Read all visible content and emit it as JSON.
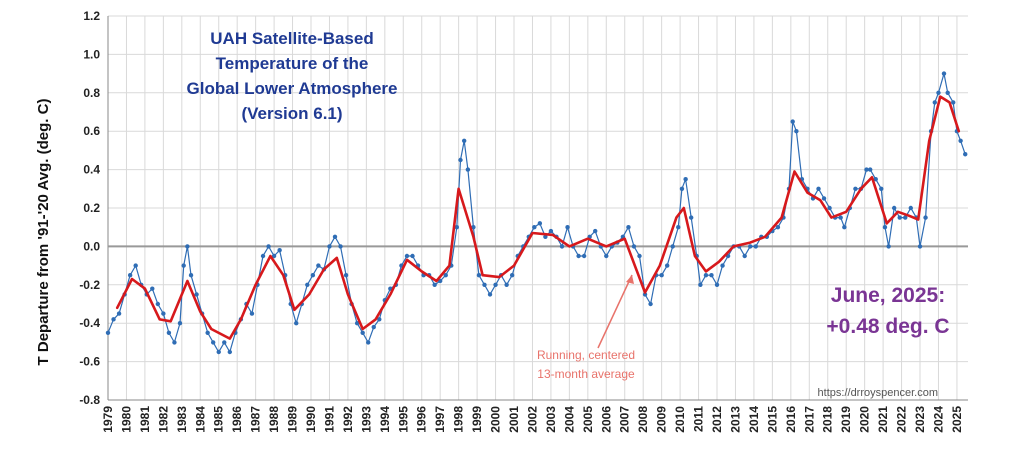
{
  "chart_data": {
    "type": "line",
    "title": [
      "UAH Satellite-Based",
      "Temperature of the",
      "Global Lower Atmosphere",
      "(Version 6.1)"
    ],
    "ylabel": "T Departure from '91-'20 Avg. (deg. C)",
    "xlabel": "",
    "ylim": [
      -0.8,
      1.2
    ],
    "yticks": [
      "-0.8",
      "-0.6",
      "-0.4",
      "-0.2",
      "0.0",
      "0.2",
      "0.4",
      "0.6",
      "0.8",
      "1.0",
      "1.2"
    ],
    "xlim": [
      1979,
      2025.6
    ],
    "years": [
      "1979",
      "1980",
      "1981",
      "1982",
      "1983",
      "1984",
      "1985",
      "1986",
      "1987",
      "1988",
      "1989",
      "1990",
      "1991",
      "1992",
      "1993",
      "1994",
      "1995",
      "1996",
      "1997",
      "1998",
      "1999",
      "2000",
      "2001",
      "2002",
      "2003",
      "2004",
      "2005",
      "2006",
      "2007",
      "2008",
      "2009",
      "2010",
      "2011",
      "2012",
      "2013",
      "2014",
      "2015",
      "2016",
      "2017",
      "2018",
      "2019",
      "2020",
      "2021",
      "2022",
      "2023",
      "2024",
      "2025"
    ],
    "grid": true,
    "zero_line": true,
    "colors": {
      "monthly": "#2f6db5",
      "running_mean": "#d7191c",
      "title": "#1f3a93",
      "latest": "#7a3594",
      "annotation": "#e8736b"
    },
    "monthly_anchor_points": [
      [
        1979.0,
        -0.45
      ],
      [
        1979.3,
        -0.38
      ],
      [
        1979.6,
        -0.35
      ],
      [
        1979.9,
        -0.25
      ],
      [
        1980.2,
        -0.15
      ],
      [
        1980.5,
        -0.1
      ],
      [
        1980.8,
        -0.2
      ],
      [
        1981.1,
        -0.25
      ],
      [
        1981.4,
        -0.22
      ],
      [
        1981.7,
        -0.3
      ],
      [
        1982.0,
        -0.35
      ],
      [
        1982.3,
        -0.45
      ],
      [
        1982.6,
        -0.5
      ],
      [
        1982.9,
        -0.4
      ],
      [
        1983.1,
        -0.1
      ],
      [
        1983.3,
        0.0
      ],
      [
        1983.5,
        -0.15
      ],
      [
        1983.8,
        -0.25
      ],
      [
        1984.1,
        -0.35
      ],
      [
        1984.4,
        -0.45
      ],
      [
        1984.7,
        -0.5
      ],
      [
        1985.0,
        -0.55
      ],
      [
        1985.3,
        -0.5
      ],
      [
        1985.6,
        -0.55
      ],
      [
        1985.9,
        -0.45
      ],
      [
        1986.2,
        -0.38
      ],
      [
        1986.5,
        -0.3
      ],
      [
        1986.8,
        -0.35
      ],
      [
        1987.1,
        -0.2
      ],
      [
        1987.4,
        -0.05
      ],
      [
        1987.7,
        0.0
      ],
      [
        1988.0,
        -0.05
      ],
      [
        1988.3,
        -0.02
      ],
      [
        1988.6,
        -0.15
      ],
      [
        1988.9,
        -0.3
      ],
      [
        1989.2,
        -0.4
      ],
      [
        1989.5,
        -0.3
      ],
      [
        1989.8,
        -0.2
      ],
      [
        1990.1,
        -0.15
      ],
      [
        1990.4,
        -0.1
      ],
      [
        1990.7,
        -0.12
      ],
      [
        1991.0,
        0.0
      ],
      [
        1991.3,
        0.05
      ],
      [
        1991.6,
        0.0
      ],
      [
        1991.9,
        -0.15
      ],
      [
        1992.2,
        -0.3
      ],
      [
        1992.5,
        -0.4
      ],
      [
        1992.8,
        -0.45
      ],
      [
        1993.1,
        -0.5
      ],
      [
        1993.4,
        -0.42
      ],
      [
        1993.7,
        -0.38
      ],
      [
        1994.0,
        -0.28
      ],
      [
        1994.3,
        -0.22
      ],
      [
        1994.6,
        -0.2
      ],
      [
        1994.9,
        -0.1
      ],
      [
        1995.2,
        -0.05
      ],
      [
        1995.5,
        -0.05
      ],
      [
        1995.8,
        -0.1
      ],
      [
        1996.1,
        -0.15
      ],
      [
        1996.4,
        -0.15
      ],
      [
        1996.7,
        -0.2
      ],
      [
        1997.0,
        -0.18
      ],
      [
        1997.3,
        -0.15
      ],
      [
        1997.6,
        -0.1
      ],
      [
        1997.9,
        0.1
      ],
      [
        1998.1,
        0.45
      ],
      [
        1998.3,
        0.55
      ],
      [
        1998.5,
        0.4
      ],
      [
        1998.8,
        0.1
      ],
      [
        1999.1,
        -0.15
      ],
      [
        1999.4,
        -0.2
      ],
      [
        1999.7,
        -0.25
      ],
      [
        2000.0,
        -0.2
      ],
      [
        2000.3,
        -0.15
      ],
      [
        2000.6,
        -0.2
      ],
      [
        2000.9,
        -0.15
      ],
      [
        2001.2,
        -0.05
      ],
      [
        2001.5,
        0.0
      ],
      [
        2001.8,
        0.05
      ],
      [
        2002.1,
        0.1
      ],
      [
        2002.4,
        0.12
      ],
      [
        2002.7,
        0.05
      ],
      [
        2003.0,
        0.08
      ],
      [
        2003.3,
        0.05
      ],
      [
        2003.6,
        0.0
      ],
      [
        2003.9,
        0.1
      ],
      [
        2004.2,
        0.0
      ],
      [
        2004.5,
        -0.05
      ],
      [
        2004.8,
        -0.05
      ],
      [
        2005.1,
        0.05
      ],
      [
        2005.4,
        0.08
      ],
      [
        2005.7,
        0.0
      ],
      [
        2006.0,
        -0.05
      ],
      [
        2006.3,
        0.0
      ],
      [
        2006.6,
        0.02
      ],
      [
        2006.9,
        0.05
      ],
      [
        2007.2,
        0.1
      ],
      [
        2007.5,
        0.0
      ],
      [
        2007.8,
        -0.05
      ],
      [
        2008.1,
        -0.25
      ],
      [
        2008.4,
        -0.3
      ],
      [
        2008.7,
        -0.15
      ],
      [
        2009.0,
        -0.15
      ],
      [
        2009.3,
        -0.1
      ],
      [
        2009.6,
        0.0
      ],
      [
        2009.9,
        0.1
      ],
      [
        2010.1,
        0.3
      ],
      [
        2010.3,
        0.35
      ],
      [
        2010.6,
        0.15
      ],
      [
        2010.9,
        -0.05
      ],
      [
        2011.1,
        -0.2
      ],
      [
        2011.4,
        -0.15
      ],
      [
        2011.7,
        -0.15
      ],
      [
        2012.0,
        -0.2
      ],
      [
        2012.3,
        -0.1
      ],
      [
        2012.6,
        -0.05
      ],
      [
        2012.9,
        0.0
      ],
      [
        2013.2,
        0.0
      ],
      [
        2013.5,
        -0.05
      ],
      [
        2013.8,
        0.0
      ],
      [
        2014.1,
        0.0
      ],
      [
        2014.4,
        0.05
      ],
      [
        2014.7,
        0.05
      ],
      [
        2015.0,
        0.08
      ],
      [
        2015.3,
        0.1
      ],
      [
        2015.6,
        0.15
      ],
      [
        2015.9,
        0.3
      ],
      [
        2016.1,
        0.65
      ],
      [
        2016.3,
        0.6
      ],
      [
        2016.6,
        0.35
      ],
      [
        2016.9,
        0.3
      ],
      [
        2017.2,
        0.25
      ],
      [
        2017.5,
        0.3
      ],
      [
        2017.8,
        0.25
      ],
      [
        2018.1,
        0.2
      ],
      [
        2018.4,
        0.15
      ],
      [
        2018.7,
        0.15
      ],
      [
        2018.9,
        0.1
      ],
      [
        2019.2,
        0.2
      ],
      [
        2019.5,
        0.3
      ],
      [
        2019.8,
        0.3
      ],
      [
        2020.1,
        0.4
      ],
      [
        2020.3,
        0.4
      ],
      [
        2020.6,
        0.35
      ],
      [
        2020.9,
        0.3
      ],
      [
        2021.1,
        0.1
      ],
      [
        2021.3,
        0.0
      ],
      [
        2021.6,
        0.2
      ],
      [
        2021.9,
        0.15
      ],
      [
        2022.2,
        0.15
      ],
      [
        2022.5,
        0.2
      ],
      [
        2022.8,
        0.15
      ],
      [
        2023.0,
        0.0
      ],
      [
        2023.3,
        0.15
      ],
      [
        2023.6,
        0.6
      ],
      [
        2023.8,
        0.75
      ],
      [
        2024.0,
        0.8
      ],
      [
        2024.3,
        0.9
      ],
      [
        2024.5,
        0.8
      ],
      [
        2024.8,
        0.75
      ],
      [
        2025.0,
        0.6
      ],
      [
        2025.2,
        0.55
      ],
      [
        2025.45,
        0.48
      ]
    ],
    "running_mean_anchor_points": [
      [
        1979.5,
        -0.32
      ],
      [
        1980.3,
        -0.17
      ],
      [
        1981.0,
        -0.22
      ],
      [
        1981.8,
        -0.38
      ],
      [
        1982.4,
        -0.39
      ],
      [
        1983.3,
        -0.18
      ],
      [
        1984.0,
        -0.34
      ],
      [
        1984.6,
        -0.43
      ],
      [
        1985.6,
        -0.48
      ],
      [
        1986.2,
        -0.38
      ],
      [
        1987.0,
        -0.2
      ],
      [
        1987.8,
        -0.05
      ],
      [
        1988.5,
        -0.15
      ],
      [
        1989.1,
        -0.33
      ],
      [
        1989.9,
        -0.25
      ],
      [
        1990.7,
        -0.12
      ],
      [
        1991.4,
        -0.06
      ],
      [
        1992.0,
        -0.25
      ],
      [
        1992.8,
        -0.43
      ],
      [
        1993.5,
        -0.38
      ],
      [
        1994.3,
        -0.25
      ],
      [
        1995.2,
        -0.07
      ],
      [
        1996.0,
        -0.13
      ],
      [
        1996.8,
        -0.18
      ],
      [
        1997.5,
        -0.1
      ],
      [
        1998.0,
        0.3
      ],
      [
        1998.8,
        0.05
      ],
      [
        1999.3,
        -0.15
      ],
      [
        2000.2,
        -0.16
      ],
      [
        2001.0,
        -0.1
      ],
      [
        2002.0,
        0.07
      ],
      [
        2003.1,
        0.06
      ],
      [
        2004.0,
        0.0
      ],
      [
        2005.0,
        0.04
      ],
      [
        2006.0,
        0.0
      ],
      [
        2007.0,
        0.04
      ],
      [
        2008.1,
        -0.24
      ],
      [
        2008.9,
        -0.1
      ],
      [
        2009.8,
        0.15
      ],
      [
        2010.2,
        0.2
      ],
      [
        2010.8,
        -0.05
      ],
      [
        2011.4,
        -0.13
      ],
      [
        2012.1,
        -0.08
      ],
      [
        2012.9,
        0.0
      ],
      [
        2013.8,
        0.02
      ],
      [
        2014.6,
        0.05
      ],
      [
        2015.5,
        0.15
      ],
      [
        2016.2,
        0.39
      ],
      [
        2016.9,
        0.28
      ],
      [
        2017.6,
        0.24
      ],
      [
        2018.2,
        0.15
      ],
      [
        2019.0,
        0.18
      ],
      [
        2019.8,
        0.3
      ],
      [
        2020.4,
        0.36
      ],
      [
        2021.2,
        0.12
      ],
      [
        2021.8,
        0.18
      ],
      [
        2022.4,
        0.16
      ],
      [
        2022.9,
        0.14
      ],
      [
        2023.5,
        0.55
      ],
      [
        2024.1,
        0.78
      ],
      [
        2024.6,
        0.75
      ],
      [
        2025.1,
        0.6
      ]
    ],
    "latest_label": [
      "June, 2025:",
      "+0.48 deg. C"
    ],
    "annotation": [
      "Running, centered",
      "13-month average"
    ],
    "credit": "https://drroyspencer.com"
  }
}
